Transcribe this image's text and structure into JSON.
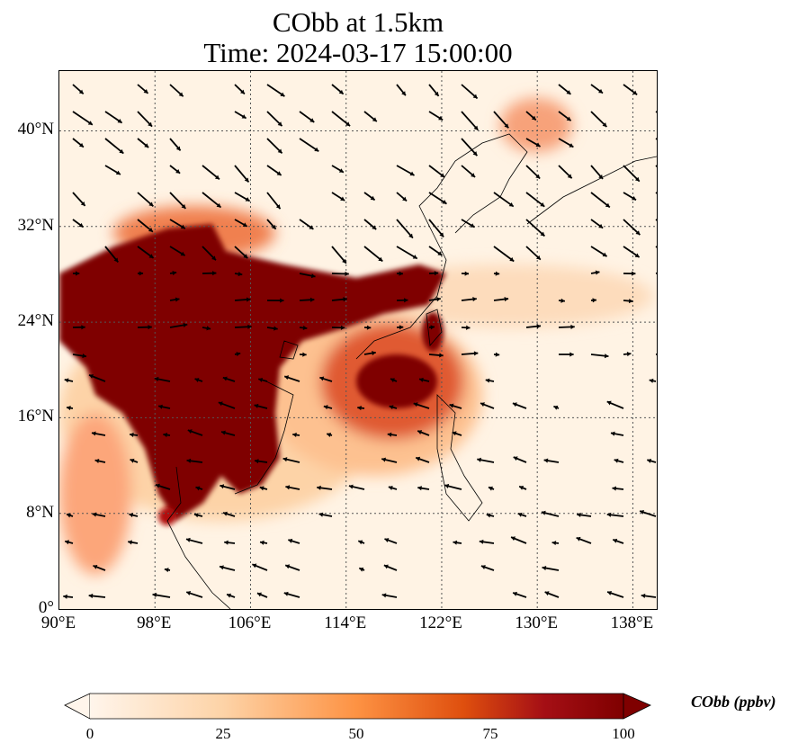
{
  "title": {
    "line1": "CObb at 1.5km",
    "line2": "Time: 2024-03-17 15:00:00"
  },
  "map": {
    "extent": {
      "lon": [
        90,
        140
      ],
      "lat": [
        0,
        45
      ]
    },
    "lat_ticks": [
      "0°",
      "8°N",
      "16°N",
      "24°N",
      "32°N",
      "40°N"
    ],
    "lat_values": [
      0,
      8,
      16,
      24,
      32,
      40
    ],
    "lon_ticks": [
      "90°E",
      "98°E",
      "106°E",
      "114°E",
      "122°E",
      "130°E",
      "138°E"
    ],
    "lon_values": [
      90,
      98,
      106,
      114,
      122,
      130,
      138
    ],
    "gridlines": "dotted"
  },
  "colorbar": {
    "label": "CObb (ppbv)",
    "ticks": [
      "0",
      "25",
      "50",
      "75",
      "100"
    ],
    "range": [
      0,
      100
    ],
    "extend": "both",
    "colors": [
      "#fff5eb",
      "#fdd3a7",
      "#fd9243",
      "#df4f0e",
      "#a50f15",
      "#7f0000"
    ]
  }
}
